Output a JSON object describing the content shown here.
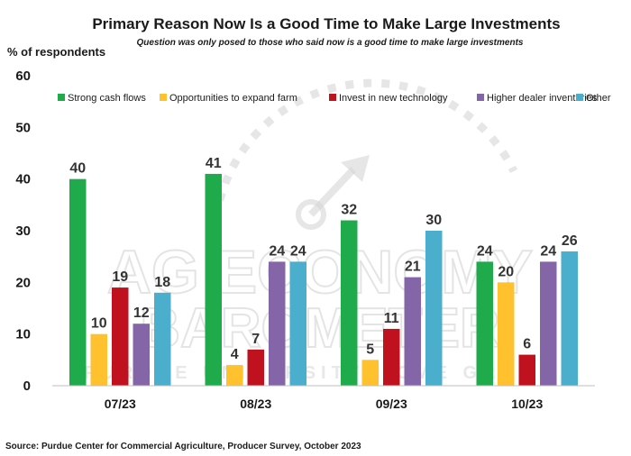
{
  "chart_data": {
    "type": "bar",
    "title": "Primary Reason Now Is a Good Time to Make Large Investments",
    "subtitle": "Question was only posed to those who said now is a good time to make large investments",
    "ylabel": "% of respondents",
    "ylim": [
      0,
      60
    ],
    "yticks": [
      0,
      10,
      20,
      30,
      40,
      50,
      60
    ],
    "grid": false,
    "legend_position": "top",
    "categories": [
      "07/23",
      "08/23",
      "09/23",
      "10/23"
    ],
    "series": [
      {
        "name": "Strong cash flows",
        "color": "#1faa4b",
        "values": [
          40,
          41,
          32,
          24
        ],
        "labels": [
          "40",
          "41",
          "32",
          "24"
        ]
      },
      {
        "name": "Opportunities to expand farm",
        "color": "#ffc12e",
        "values": [
          10,
          4,
          5,
          20
        ],
        "labels": [
          "10",
          "4",
          "5",
          "20"
        ]
      },
      {
        "name": "Invest in new technology",
        "color": "#c0111f",
        "values": [
          19,
          7,
          11,
          6
        ],
        "labels": [
          "19",
          "7",
          "11",
          "6"
        ]
      },
      {
        "name": "Higher dealer inventories",
        "color": "#8465a8",
        "values": [
          12,
          24,
          21,
          24
        ],
        "labels": [
          "12",
          "24",
          "21",
          "24"
        ]
      },
      {
        "name": "Other",
        "color": "#4baecc",
        "values": [
          18,
          24,
          30,
          26
        ],
        "labels": [
          "18",
          "24",
          "30",
          "26"
        ]
      }
    ],
    "source": "Source: Purdue Center for Commercial Agriculture, Producer Survey, October 2023"
  },
  "watermark": {
    "line1": "AG ECONOMY",
    "line2": "BAROMETER",
    "line3": "PURDUE UNIVERSITY | CME GROUP"
  }
}
